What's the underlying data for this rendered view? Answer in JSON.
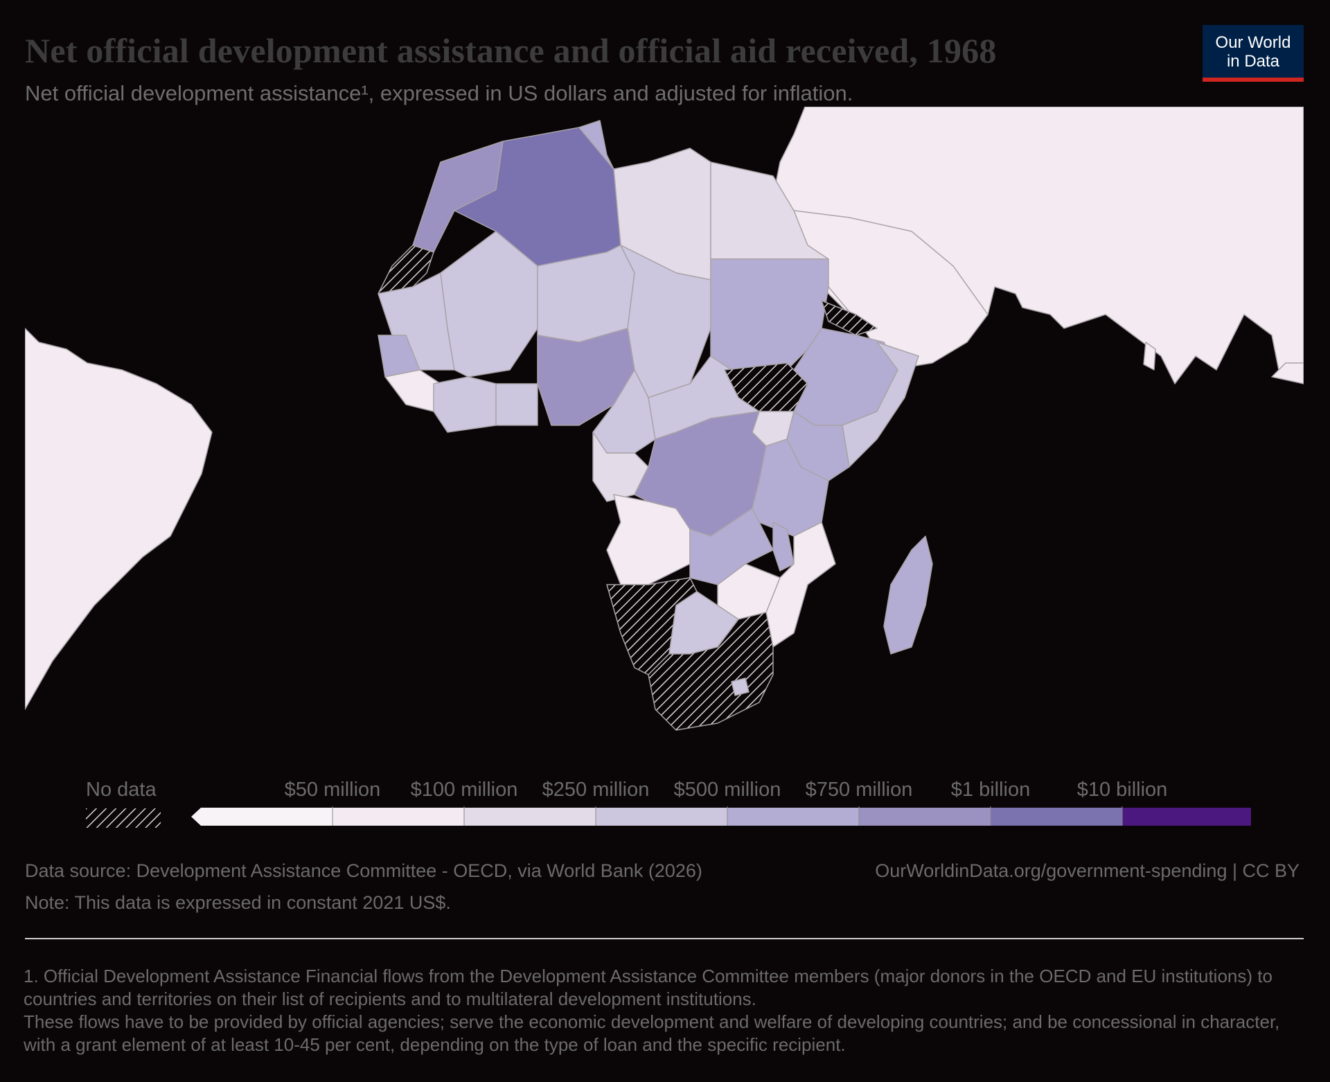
{
  "title": "Net official development assistance and official aid received, 1968",
  "subtitle": "Net official development assistance¹, expressed in US dollars and adjusted for inflation.",
  "logo": {
    "line1": "Our World",
    "line2": "in Data"
  },
  "legend": {
    "no_data_label": "No data",
    "bins": [
      {
        "label": "$50 million",
        "color": "#f3ebf1"
      },
      {
        "label": "$100 million",
        "color": "#e3dbe8"
      },
      {
        "label": "$250 million",
        "color": "#ccc7de"
      },
      {
        "label": "$500 million",
        "color": "#b3add3"
      },
      {
        "label": "$750 million",
        "color": "#9c92c2"
      },
      {
        "label": "$1 billion",
        "color": "#7b72b0"
      },
      {
        "label": "$10 billion",
        "color": "#66539f"
      }
    ],
    "last_color": "#4b1880",
    "first_color": "#f8f3f6"
  },
  "footer": {
    "source": "Data source: Development Assistance Committee - OECD, via World Bank (2026)",
    "url": "OurWorldinData.org/government-spending | CC BY",
    "note": "Note: This data is expressed in constant 2021 US$.",
    "footnote_1": "1. Official Development Assistance Financial flows from the Development Assistance Committee members (major donors in the OECD and EU institutions) to countries and territories on their list of recipients and to multilateral development institutions.",
    "footnote_2": "These flows have to be provided by official agencies; serve the economic development and welfare of developing countries; and be concessional in character, with a grant element of at least 10-45 per cent, depending on the type of loan and the specific recipient."
  },
  "map_colors": {
    "ocean": "#0a0507",
    "border": "#a9a3a8",
    "lowest": "#f3ebf1"
  }
}
